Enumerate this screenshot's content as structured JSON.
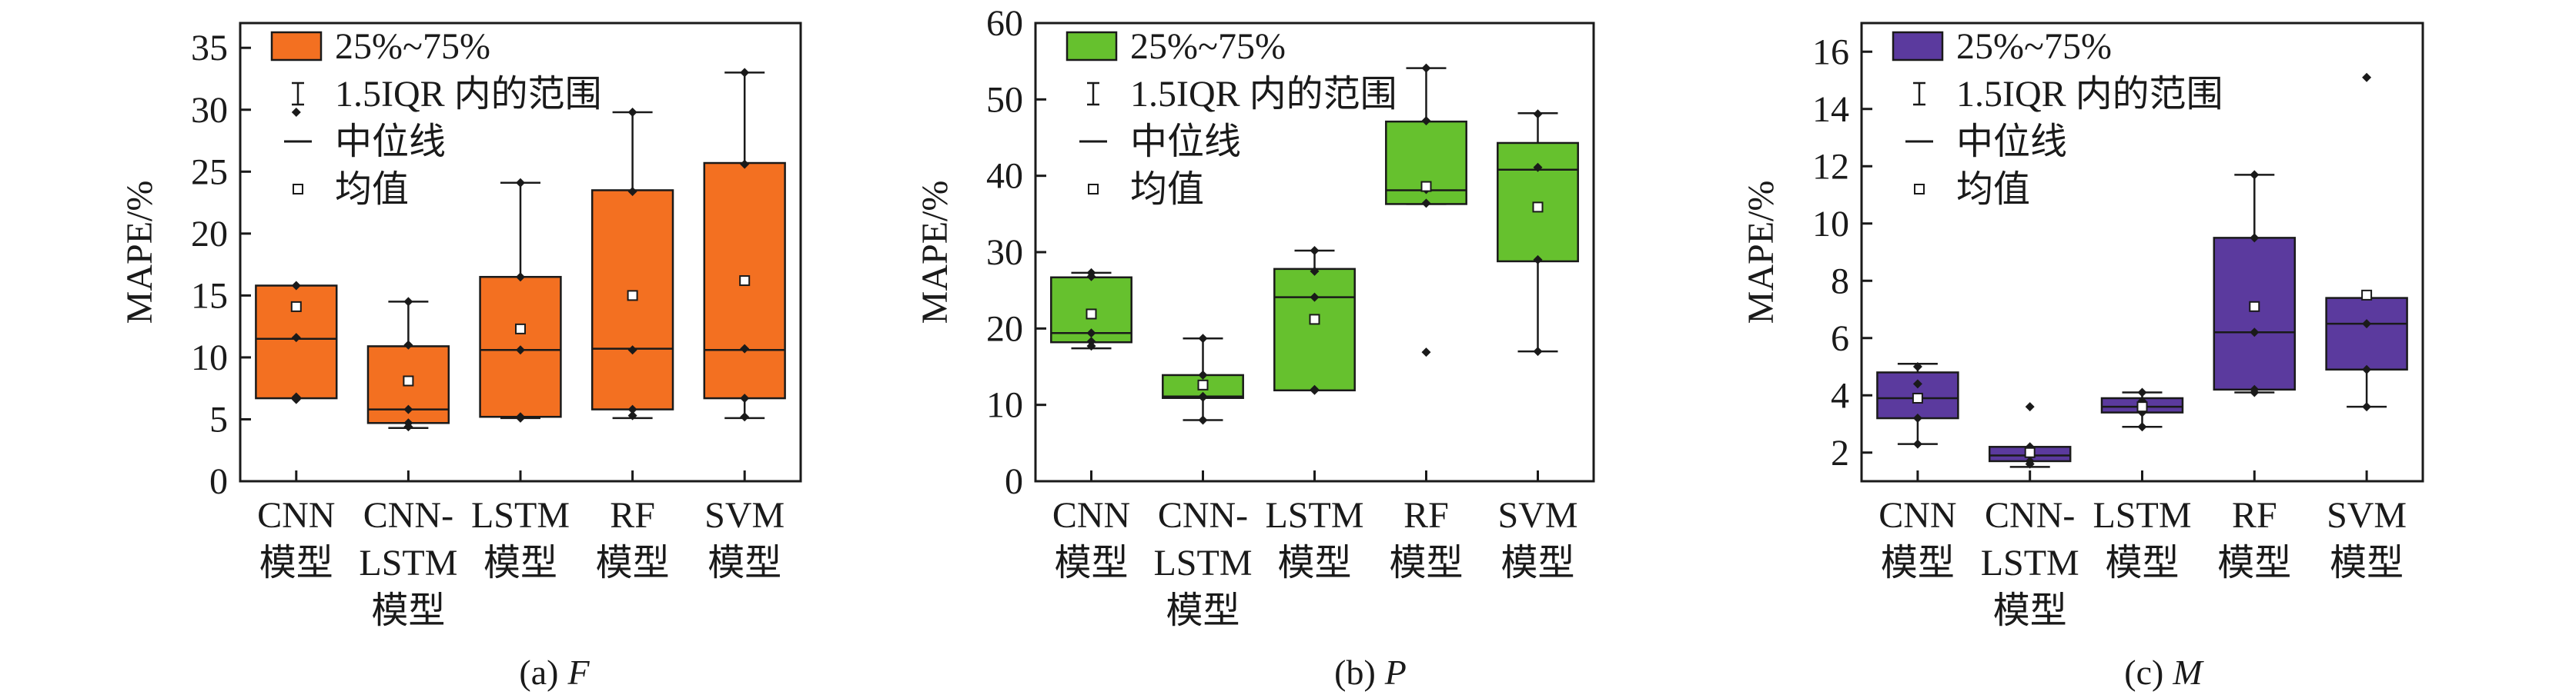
{
  "chart_data": [
    {
      "type": "box",
      "caption": "(a) F",
      "caption_prefix": "(a)",
      "caption_var": "F",
      "ylabel": "MAPE/%",
      "ylim": [
        0,
        37
      ],
      "yticks": [
        0,
        5,
        10,
        15,
        20,
        25,
        30,
        35
      ],
      "color": "#F37021",
      "categories": [
        [
          "CNN",
          "模型"
        ],
        [
          "CNN-",
          "LSTM",
          "模型"
        ],
        [
          "LSTM",
          "模型"
        ],
        [
          "RF",
          "模型"
        ],
        [
          "SVM",
          "模型"
        ]
      ],
      "boxes": [
        {
          "q1": 6.7,
          "median": 11.5,
          "q3": 15.8,
          "mean": 14.1,
          "whisker_low": null,
          "whisker_high": null,
          "points": [
            15.8,
            11.6,
            6.8,
            6.6,
            29.8
          ]
        },
        {
          "q1": 4.7,
          "median": 5.8,
          "q3": 10.9,
          "mean": 8.1,
          "whisker_low": 4.3,
          "whisker_high": 14.5,
          "points": [
            14.5,
            11.0,
            5.8,
            4.7,
            4.4
          ]
        },
        {
          "q1": 5.2,
          "median": 10.6,
          "q3": 16.5,
          "mean": 12.3,
          "whisker_low": 5.1,
          "whisker_high": 24.1,
          "points": [
            24.1,
            16.5,
            10.6,
            5.2,
            5.1
          ]
        },
        {
          "q1": 5.8,
          "median": 10.7,
          "q3": 23.5,
          "mean": 15.0,
          "whisker_low": 5.1,
          "whisker_high": 29.8,
          "points": [
            29.8,
            23.4,
            10.6,
            5.8,
            5.3
          ]
        },
        {
          "q1": 6.7,
          "median": 10.6,
          "q3": 25.7,
          "mean": 16.2,
          "whisker_low": 5.1,
          "whisker_high": 33.0,
          "points": [
            33.0,
            25.6,
            10.7,
            6.7,
            5.2
          ]
        }
      ]
    },
    {
      "type": "box",
      "caption": "(b) P",
      "caption_prefix": "(b)",
      "caption_var": "P",
      "ylabel": "MAPE/%",
      "ylim": [
        0,
        60
      ],
      "yticks": [
        0,
        10,
        20,
        30,
        40,
        50,
        60
      ],
      "color": "#66C12E",
      "categories": [
        [
          "CNN",
          "模型"
        ],
        [
          "CNN-",
          "LSTM",
          "模型"
        ],
        [
          "LSTM",
          "模型"
        ],
        [
          "RF",
          "模型"
        ],
        [
          "SVM",
          "模型"
        ]
      ],
      "boxes": [
        {
          "q1": 18.2,
          "median": 19.4,
          "q3": 26.7,
          "mean": 21.9,
          "whisker_low": 17.4,
          "whisker_high": 27.3,
          "points": [
            27.3,
            26.8,
            19.4,
            18.3,
            17.7
          ]
        },
        {
          "q1": 10.9,
          "median": 11.1,
          "q3": 13.9,
          "mean": 12.6,
          "whisker_low": 8.0,
          "whisker_high": 18.7,
          "points": [
            18.7,
            13.9,
            11.1,
            11.0,
            8.0
          ]
        },
        {
          "q1": 11.9,
          "median": 24.1,
          "q3": 27.8,
          "mean": 21.2,
          "whisker_low": 11.9,
          "whisker_high": 30.2,
          "points": [
            30.2,
            27.5,
            24.1,
            12.0,
            11.9
          ]
        },
        {
          "q1": 36.3,
          "median": 38.1,
          "q3": 47.1,
          "mean": 38.6,
          "whisker_low": 36.3,
          "whisker_high": 54.1,
          "points": [
            54.1,
            47.2,
            38.2,
            36.4,
            16.9
          ]
        },
        {
          "q1": 28.8,
          "median": 40.8,
          "q3": 44.3,
          "mean": 35.9,
          "whisker_low": 17.0,
          "whisker_high": 48.2,
          "points": [
            48.1,
            41.1,
            29.0,
            17.0
          ]
        }
      ]
    },
    {
      "type": "box",
      "caption": "(c) M",
      "caption_prefix": "(c)",
      "caption_var": "M",
      "ylabel": "MAPE/%",
      "ylim": [
        1,
        17
      ],
      "yticks": [
        2,
        4,
        6,
        8,
        10,
        12,
        14,
        16
      ],
      "color": "#5B3A9E",
      "categories": [
        [
          "CNN",
          "模型"
        ],
        [
          "CNN-",
          "LSTM",
          "模型"
        ],
        [
          "LSTM",
          "模型"
        ],
        [
          "RF",
          "模型"
        ],
        [
          "SVM",
          "模型"
        ]
      ],
      "boxes": [
        {
          "q1": 3.2,
          "median": 3.9,
          "q3": 4.8,
          "mean": 3.9,
          "whisker_low": 2.3,
          "whisker_high": 5.1,
          "points": [
            5.0,
            4.4,
            3.9,
            3.2,
            2.3
          ]
        },
        {
          "q1": 1.7,
          "median": 1.9,
          "q3": 2.2,
          "mean": 2.0,
          "whisker_low": 1.5,
          "whisker_high": null,
          "points": [
            3.6,
            2.2,
            2.0,
            1.7,
            1.6
          ]
        },
        {
          "q1": 3.4,
          "median": 3.6,
          "q3": 3.9,
          "mean": 3.6,
          "whisker_low": 2.9,
          "whisker_high": 4.1,
          "points": [
            4.1,
            3.8,
            3.6,
            3.4,
            2.9
          ]
        },
        {
          "q1": 4.2,
          "median": 6.2,
          "q3": 9.5,
          "mean": 7.1,
          "whisker_low": 4.1,
          "whisker_high": 11.7,
          "points": [
            11.7,
            9.5,
            6.2,
            4.2,
            4.1
          ]
        },
        {
          "q1": 4.9,
          "median": 6.5,
          "q3": 7.4,
          "mean": 7.5,
          "whisker_low": 3.6,
          "whisker_high": null,
          "points": [
            15.1,
            7.5,
            6.5,
            4.9,
            3.6
          ]
        }
      ]
    }
  ],
  "legend": {
    "items": [
      {
        "key": "box",
        "label": "25%~75%"
      },
      {
        "key": "whisker",
        "label": "1.5IQR 内的范围"
      },
      {
        "key": "median",
        "label": "中位线"
      },
      {
        "key": "mean",
        "label": "均值"
      }
    ],
    "placement": "top-left"
  }
}
